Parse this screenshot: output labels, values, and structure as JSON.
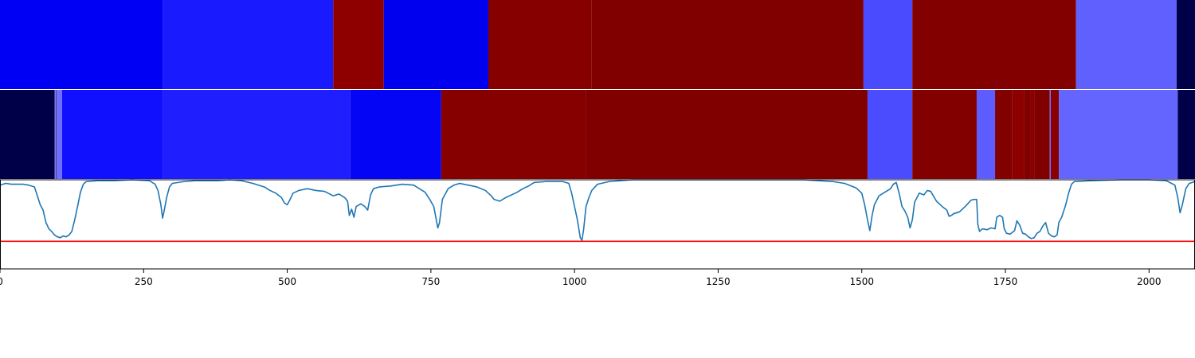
{
  "chart_data": {
    "type": "heatmap",
    "xlim": [
      0,
      2080
    ],
    "x_ticks": [
      0,
      250,
      500,
      750,
      1000,
      1250,
      1500,
      1750,
      2000
    ],
    "x_tick_labels": [
      "0",
      "250",
      "500",
      "750",
      "1000",
      "1250",
      "1500",
      "1750",
      "2000"
    ],
    "segment_rows": [
      {
        "segments": [
          {
            "start": 0,
            "end": 283,
            "color": "#0000f5"
          },
          {
            "start": 283,
            "end": 580,
            "color": "#1a1aff"
          },
          {
            "start": 580,
            "end": 668,
            "color": "#8e0000"
          },
          {
            "start": 668,
            "end": 850,
            "color": "#0000ef"
          },
          {
            "start": 850,
            "end": 1030,
            "color": "#870000"
          },
          {
            "start": 1030,
            "end": 1503,
            "color": "#800000"
          },
          {
            "start": 1503,
            "end": 1588,
            "color": "#4a4aff"
          },
          {
            "start": 1588,
            "end": 1873,
            "color": "#820000"
          },
          {
            "start": 1873,
            "end": 2048,
            "color": "#6060ff"
          },
          {
            "start": 2048,
            "end": 2080,
            "color": "#000048"
          }
        ]
      },
      {
        "segments": [
          {
            "start": 0,
            "end": 95,
            "color": "#000048"
          },
          {
            "start": 95,
            "end": 97,
            "color": "#8080ff"
          },
          {
            "start": 97,
            "end": 98,
            "color": "#000048"
          },
          {
            "start": 98,
            "end": 108,
            "color": "#7070ff"
          },
          {
            "start": 108,
            "end": 283,
            "color": "#1010ff"
          },
          {
            "start": 283,
            "end": 610,
            "color": "#1e1eff"
          },
          {
            "start": 610,
            "end": 768,
            "color": "#0505f5"
          },
          {
            "start": 768,
            "end": 1020,
            "color": "#860000"
          },
          {
            "start": 1020,
            "end": 1510,
            "color": "#800000"
          },
          {
            "start": 1510,
            "end": 1588,
            "color": "#4c4cff"
          },
          {
            "start": 1588,
            "end": 1700,
            "color": "#820000"
          },
          {
            "start": 1700,
            "end": 1732,
            "color": "#5c5cff"
          },
          {
            "start": 1732,
            "end": 1762,
            "color": "#820000"
          },
          {
            "start": 1762,
            "end": 1782,
            "color": "#8c0000"
          },
          {
            "start": 1782,
            "end": 1793,
            "color": "#800000"
          },
          {
            "start": 1793,
            "end": 1800,
            "color": "#8a0000"
          },
          {
            "start": 1800,
            "end": 1827,
            "color": "#800000"
          },
          {
            "start": 1827,
            "end": 1829,
            "color": "#7070ff"
          },
          {
            "start": 1829,
            "end": 1843,
            "color": "#880000"
          },
          {
            "start": 1843,
            "end": 2050,
            "color": "#6464ff"
          },
          {
            "start": 2050,
            "end": 2080,
            "color": "#000048"
          }
        ]
      }
    ],
    "line": {
      "ylim": [
        0,
        1
      ],
      "threshold": 0.31,
      "threshold_color": "#ff0000",
      "line_color": "#1f77b4",
      "points": [
        [
          0,
          0.94
        ],
        [
          10,
          0.96
        ],
        [
          20,
          0.95
        ],
        [
          30,
          0.95
        ],
        [
          40,
          0.95
        ],
        [
          50,
          0.94
        ],
        [
          60,
          0.92
        ],
        [
          65,
          0.82
        ],
        [
          70,
          0.72
        ],
        [
          75,
          0.66
        ],
        [
          80,
          0.52
        ],
        [
          85,
          0.45
        ],
        [
          90,
          0.42
        ],
        [
          95,
          0.38
        ],
        [
          100,
          0.36
        ],
        [
          105,
          0.35
        ],
        [
          110,
          0.37
        ],
        [
          115,
          0.36
        ],
        [
          120,
          0.38
        ],
        [
          125,
          0.42
        ],
        [
          130,
          0.55
        ],
        [
          135,
          0.7
        ],
        [
          140,
          0.86
        ],
        [
          145,
          0.95
        ],
        [
          150,
          0.98
        ],
        [
          170,
          0.99
        ],
        [
          200,
          0.99
        ],
        [
          230,
          1.0
        ],
        [
          260,
          0.99
        ],
        [
          270,
          0.95
        ],
        [
          275,
          0.88
        ],
        [
          280,
          0.72
        ],
        [
          283,
          0.57
        ],
        [
          286,
          0.66
        ],
        [
          290,
          0.8
        ],
        [
          295,
          0.92
        ],
        [
          300,
          0.96
        ],
        [
          320,
          0.98
        ],
        [
          340,
          0.99
        ],
        [
          360,
          0.99
        ],
        [
          380,
          0.99
        ],
        [
          400,
          1.0
        ],
        [
          420,
          0.99
        ],
        [
          440,
          0.96
        ],
        [
          460,
          0.92
        ],
        [
          470,
          0.88
        ],
        [
          480,
          0.85
        ],
        [
          490,
          0.8
        ],
        [
          495,
          0.74
        ],
        [
          500,
          0.72
        ],
        [
          505,
          0.78
        ],
        [
          510,
          0.85
        ],
        [
          520,
          0.88
        ],
        [
          535,
          0.9
        ],
        [
          550,
          0.88
        ],
        [
          565,
          0.87
        ],
        [
          580,
          0.82
        ],
        [
          590,
          0.84
        ],
        [
          600,
          0.8
        ],
        [
          605,
          0.76
        ],
        [
          608,
          0.6
        ],
        [
          612,
          0.67
        ],
        [
          616,
          0.58
        ],
        [
          620,
          0.7
        ],
        [
          628,
          0.73
        ],
        [
          635,
          0.7
        ],
        [
          640,
          0.66
        ],
        [
          645,
          0.83
        ],
        [
          650,
          0.9
        ],
        [
          660,
          0.92
        ],
        [
          680,
          0.93
        ],
        [
          700,
          0.95
        ],
        [
          720,
          0.94
        ],
        [
          730,
          0.9
        ],
        [
          740,
          0.86
        ],
        [
          748,
          0.78
        ],
        [
          755,
          0.7
        ],
        [
          758,
          0.6
        ],
        [
          762,
          0.46
        ],
        [
          765,
          0.52
        ],
        [
          770,
          0.78
        ],
        [
          780,
          0.9
        ],
        [
          790,
          0.94
        ],
        [
          800,
          0.96
        ],
        [
          815,
          0.94
        ],
        [
          830,
          0.92
        ],
        [
          845,
          0.88
        ],
        [
          855,
          0.82
        ],
        [
          860,
          0.78
        ],
        [
          870,
          0.76
        ],
        [
          880,
          0.8
        ],
        [
          890,
          0.83
        ],
        [
          900,
          0.86
        ],
        [
          910,
          0.9
        ],
        [
          920,
          0.93
        ],
        [
          930,
          0.97
        ],
        [
          950,
          0.98
        ],
        [
          980,
          0.98
        ],
        [
          990,
          0.96
        ],
        [
          995,
          0.85
        ],
        [
          1000,
          0.7
        ],
        [
          1005,
          0.55
        ],
        [
          1010,
          0.35
        ],
        [
          1013,
          0.32
        ],
        [
          1016,
          0.45
        ],
        [
          1020,
          0.7
        ],
        [
          1025,
          0.8
        ],
        [
          1030,
          0.88
        ],
        [
          1040,
          0.95
        ],
        [
          1060,
          0.98
        ],
        [
          1100,
          1.0
        ],
        [
          1200,
          1.0
        ],
        [
          1300,
          1.0
        ],
        [
          1400,
          1.0
        ],
        [
          1450,
          0.98
        ],
        [
          1470,
          0.96
        ],
        [
          1490,
          0.91
        ],
        [
          1500,
          0.85
        ],
        [
          1505,
          0.72
        ],
        [
          1510,
          0.55
        ],
        [
          1514,
          0.43
        ],
        [
          1518,
          0.6
        ],
        [
          1522,
          0.72
        ],
        [
          1530,
          0.82
        ],
        [
          1540,
          0.86
        ],
        [
          1550,
          0.9
        ],
        [
          1555,
          0.95
        ],
        [
          1560,
          0.97
        ],
        [
          1565,
          0.85
        ],
        [
          1570,
          0.7
        ],
        [
          1575,
          0.65
        ],
        [
          1580,
          0.58
        ],
        [
          1584,
          0.46
        ],
        [
          1588,
          0.55
        ],
        [
          1592,
          0.75
        ],
        [
          1600,
          0.85
        ],
        [
          1608,
          0.83
        ],
        [
          1614,
          0.88
        ],
        [
          1620,
          0.87
        ],
        [
          1630,
          0.76
        ],
        [
          1640,
          0.7
        ],
        [
          1648,
          0.66
        ],
        [
          1652,
          0.59
        ],
        [
          1656,
          0.6
        ],
        [
          1660,
          0.62
        ],
        [
          1670,
          0.64
        ],
        [
          1680,
          0.7
        ],
        [
          1690,
          0.77
        ],
        [
          1695,
          0.78
        ],
        [
          1700,
          0.78
        ],
        [
          1702,
          0.5
        ],
        [
          1705,
          0.42
        ],
        [
          1710,
          0.45
        ],
        [
          1718,
          0.44
        ],
        [
          1725,
          0.46
        ],
        [
          1732,
          0.45
        ],
        [
          1735,
          0.58
        ],
        [
          1740,
          0.6
        ],
        [
          1745,
          0.58
        ],
        [
          1748,
          0.45
        ],
        [
          1752,
          0.4
        ],
        [
          1758,
          0.39
        ],
        [
          1762,
          0.41
        ],
        [
          1766,
          0.43
        ],
        [
          1770,
          0.54
        ],
        [
          1775,
          0.49
        ],
        [
          1780,
          0.4
        ],
        [
          1785,
          0.39
        ],
        [
          1790,
          0.36
        ],
        [
          1795,
          0.34
        ],
        [
          1800,
          0.35
        ],
        [
          1805,
          0.4
        ],
        [
          1810,
          0.42
        ],
        [
          1815,
          0.48
        ],
        [
          1820,
          0.52
        ],
        [
          1825,
          0.4
        ],
        [
          1830,
          0.37
        ],
        [
          1835,
          0.36
        ],
        [
          1840,
          0.38
        ],
        [
          1843,
          0.52
        ],
        [
          1848,
          0.58
        ],
        [
          1855,
          0.72
        ],
        [
          1860,
          0.85
        ],
        [
          1865,
          0.95
        ],
        [
          1870,
          0.98
        ],
        [
          1900,
          0.99
        ],
        [
          1950,
          1.0
        ],
        [
          2000,
          1.0
        ],
        [
          2030,
          0.99
        ],
        [
          2045,
          0.94
        ],
        [
          2050,
          0.8
        ],
        [
          2054,
          0.63
        ],
        [
          2058,
          0.72
        ],
        [
          2064,
          0.9
        ],
        [
          2070,
          0.96
        ],
        [
          2080,
          0.98
        ]
      ]
    }
  }
}
